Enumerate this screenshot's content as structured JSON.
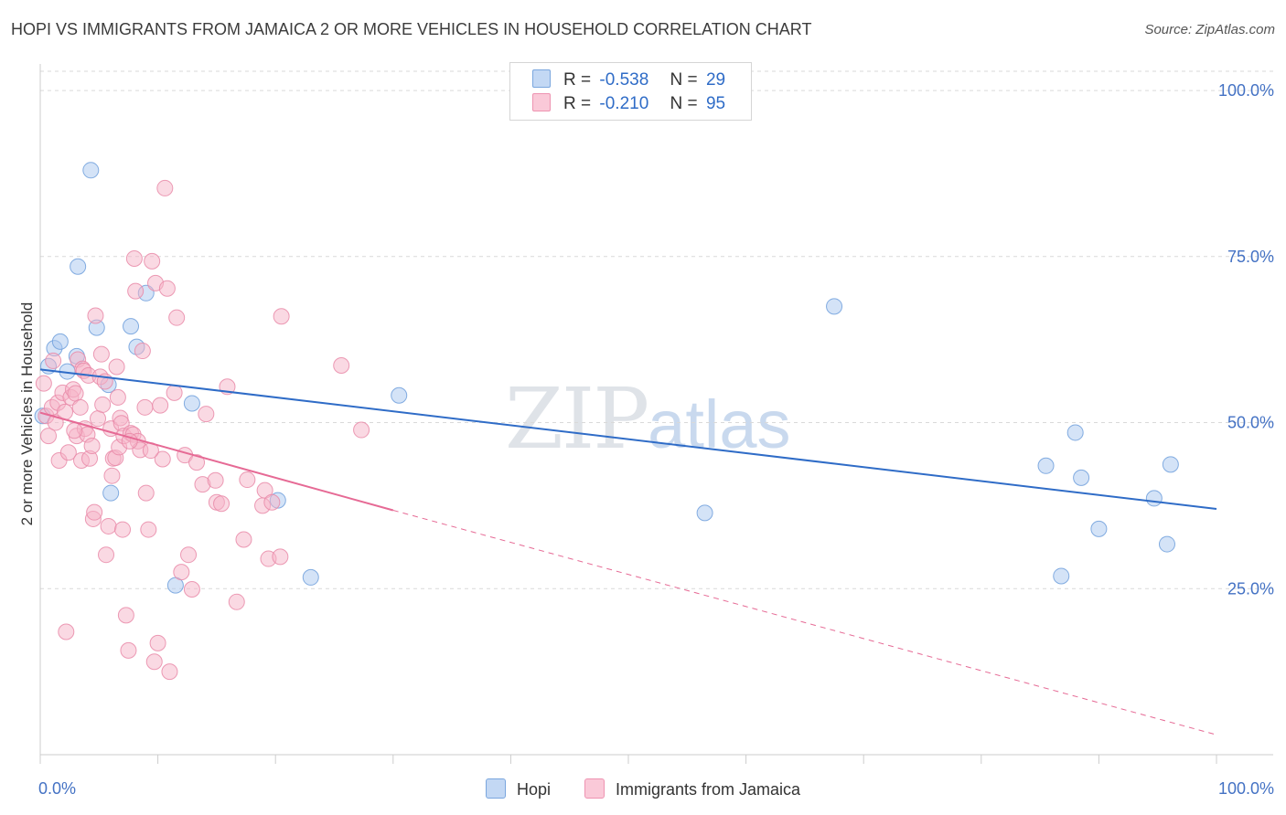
{
  "title": "HOPI VS IMMIGRANTS FROM JAMAICA 2 OR MORE VEHICLES IN HOUSEHOLD CORRELATION CHART",
  "source": "Source: ZipAtlas.com",
  "watermark": {
    "zip": "ZIP",
    "atlas": "atlas"
  },
  "legend": {
    "rows": [
      {
        "r_label": "R =",
        "r_value": "-0.538",
        "n_label": "N =",
        "n_value": "29"
      },
      {
        "r_label": "R =",
        "r_value": "-0.210",
        "n_label": "N =",
        "n_value": "95"
      }
    ]
  },
  "colors": {
    "hopi_fill": "#aac8f0",
    "hopi_stroke": "#6f9fdc",
    "hopi_line": "#2f6cc7",
    "jam_fill": "#f6b3c8",
    "jam_stroke": "#e98aa8",
    "jam_line": "#e66a95",
    "grid": "#d9d9d9",
    "axis": "#cccccc"
  },
  "chart_data": {
    "type": "scatter",
    "title": "HOPI VS IMMIGRANTS FROM JAMAICA 2 OR MORE VEHICLES IN HOUSEHOLD CORRELATION CHART",
    "xlabel": "",
    "ylabel": "2 or more Vehicles in Household",
    "xlim": [
      0,
      100
    ],
    "ylim": [
      0,
      104
    ],
    "x_tick_labels": [
      "0.0%",
      "100.0%"
    ],
    "y_ticks": [
      25,
      50,
      75,
      100
    ],
    "y_tick_labels": [
      "25.0%",
      "50.0%",
      "75.0%",
      "100.0%"
    ],
    "grid": true,
    "legend_position": "top-center",
    "series": [
      {
        "name": "Hopi",
        "r": -0.538,
        "n": 29,
        "trend": {
          "x": [
            0,
            100
          ],
          "y": [
            58.0,
            37.0
          ],
          "dashed_to": null
        },
        "points": [
          [
            0.7,
            58.5
          ],
          [
            1.2,
            61.2
          ],
          [
            1.7,
            62.2
          ],
          [
            2.3,
            57.7
          ],
          [
            3.1,
            60.0
          ],
          [
            3.2,
            73.5
          ],
          [
            4.3,
            88.0
          ],
          [
            4.8,
            64.3
          ],
          [
            5.8,
            55.7
          ],
          [
            6.0,
            39.4
          ],
          [
            7.7,
            64.5
          ],
          [
            8.2,
            61.4
          ],
          [
            9.0,
            69.5
          ],
          [
            11.5,
            25.5
          ],
          [
            12.9,
            52.9
          ],
          [
            20.2,
            38.3
          ],
          [
            23.0,
            26.7
          ],
          [
            30.5,
            54.1
          ],
          [
            56.5,
            36.4
          ],
          [
            67.5,
            67.5
          ],
          [
            85.5,
            43.5
          ],
          [
            86.8,
            26.9
          ],
          [
            88.0,
            48.5
          ],
          [
            88.5,
            41.7
          ],
          [
            90.0,
            34.0
          ],
          [
            94.7,
            38.6
          ],
          [
            95.8,
            31.7
          ],
          [
            96.1,
            43.7
          ],
          [
            0.2,
            51.0
          ]
        ]
      },
      {
        "name": "Immigrants from Jamaica",
        "r": -0.21,
        "n": 95,
        "trend": {
          "x": [
            0,
            30
          ],
          "y": [
            51.5,
            36.8
          ],
          "dashed_x": [
            30,
            100
          ],
          "dashed_y": [
            36.8,
            3.0
          ]
        },
        "points": [
          [
            0.3,
            55.9
          ],
          [
            0.5,
            51.0
          ],
          [
            0.7,
            48.0
          ],
          [
            1.0,
            52.3
          ],
          [
            1.3,
            50.0
          ],
          [
            1.5,
            53.0
          ],
          [
            1.6,
            44.3
          ],
          [
            1.9,
            54.5
          ],
          [
            2.1,
            51.6
          ],
          [
            2.2,
            18.5
          ],
          [
            2.4,
            45.5
          ],
          [
            2.6,
            53.8
          ],
          [
            2.8,
            55.0
          ],
          [
            3.0,
            54.4
          ],
          [
            3.1,
            48.0
          ],
          [
            3.2,
            59.5
          ],
          [
            3.4,
            52.3
          ],
          [
            3.5,
            44.3
          ],
          [
            3.6,
            58.1
          ],
          [
            3.7,
            57.8
          ],
          [
            3.8,
            49.1
          ],
          [
            4.0,
            48.2
          ],
          [
            4.1,
            57.1
          ],
          [
            4.2,
            44.6
          ],
          [
            4.4,
            46.5
          ],
          [
            4.5,
            35.5
          ],
          [
            4.6,
            36.5
          ],
          [
            4.7,
            66.1
          ],
          [
            4.9,
            50.6
          ],
          [
            5.1,
            56.9
          ],
          [
            5.3,
            52.7
          ],
          [
            5.5,
            56.2
          ],
          [
            5.6,
            30.1
          ],
          [
            5.8,
            34.4
          ],
          [
            6.0,
            49.1
          ],
          [
            6.1,
            42.0
          ],
          [
            6.2,
            44.6
          ],
          [
            6.4,
            44.7
          ],
          [
            6.5,
            58.4
          ],
          [
            6.6,
            53.8
          ],
          [
            6.7,
            46.3
          ],
          [
            6.8,
            50.7
          ],
          [
            6.9,
            49.9
          ],
          [
            7.0,
            33.9
          ],
          [
            7.1,
            48.0
          ],
          [
            7.3,
            21.0
          ],
          [
            7.5,
            15.7
          ],
          [
            7.7,
            48.4
          ],
          [
            7.9,
            48.2
          ],
          [
            8.0,
            74.7
          ],
          [
            8.1,
            69.8
          ],
          [
            8.3,
            47.2
          ],
          [
            8.5,
            45.9
          ],
          [
            8.7,
            60.8
          ],
          [
            8.9,
            52.3
          ],
          [
            9.0,
            39.4
          ],
          [
            9.2,
            33.9
          ],
          [
            9.5,
            74.3
          ],
          [
            9.7,
            14.0
          ],
          [
            9.8,
            71.0
          ],
          [
            10.0,
            16.8
          ],
          [
            10.2,
            52.6
          ],
          [
            10.4,
            44.5
          ],
          [
            10.6,
            85.3
          ],
          [
            10.8,
            70.2
          ],
          [
            11.0,
            12.5
          ],
          [
            11.4,
            54.5
          ],
          [
            11.6,
            65.8
          ],
          [
            12.0,
            27.5
          ],
          [
            12.3,
            45.1
          ],
          [
            12.6,
            30.1
          ],
          [
            12.9,
            24.9
          ],
          [
            13.8,
            40.7
          ],
          [
            14.1,
            51.3
          ],
          [
            14.9,
            41.3
          ],
          [
            15.0,
            38.0
          ],
          [
            15.4,
            37.8
          ],
          [
            15.9,
            55.4
          ],
          [
            16.7,
            23.0
          ],
          [
            17.3,
            32.4
          ],
          [
            17.6,
            41.4
          ],
          [
            18.9,
            37.5
          ],
          [
            19.1,
            39.8
          ],
          [
            19.4,
            29.5
          ],
          [
            19.7,
            38.0
          ],
          [
            20.4,
            29.8
          ],
          [
            20.5,
            66.0
          ],
          [
            25.6,
            58.6
          ],
          [
            27.3,
            48.9
          ],
          [
            1.1,
            59.3
          ],
          [
            2.9,
            48.8
          ],
          [
            5.2,
            60.3
          ],
          [
            7.6,
            47.2
          ],
          [
            9.4,
            45.8
          ],
          [
            13.3,
            44.0
          ]
        ]
      }
    ]
  }
}
